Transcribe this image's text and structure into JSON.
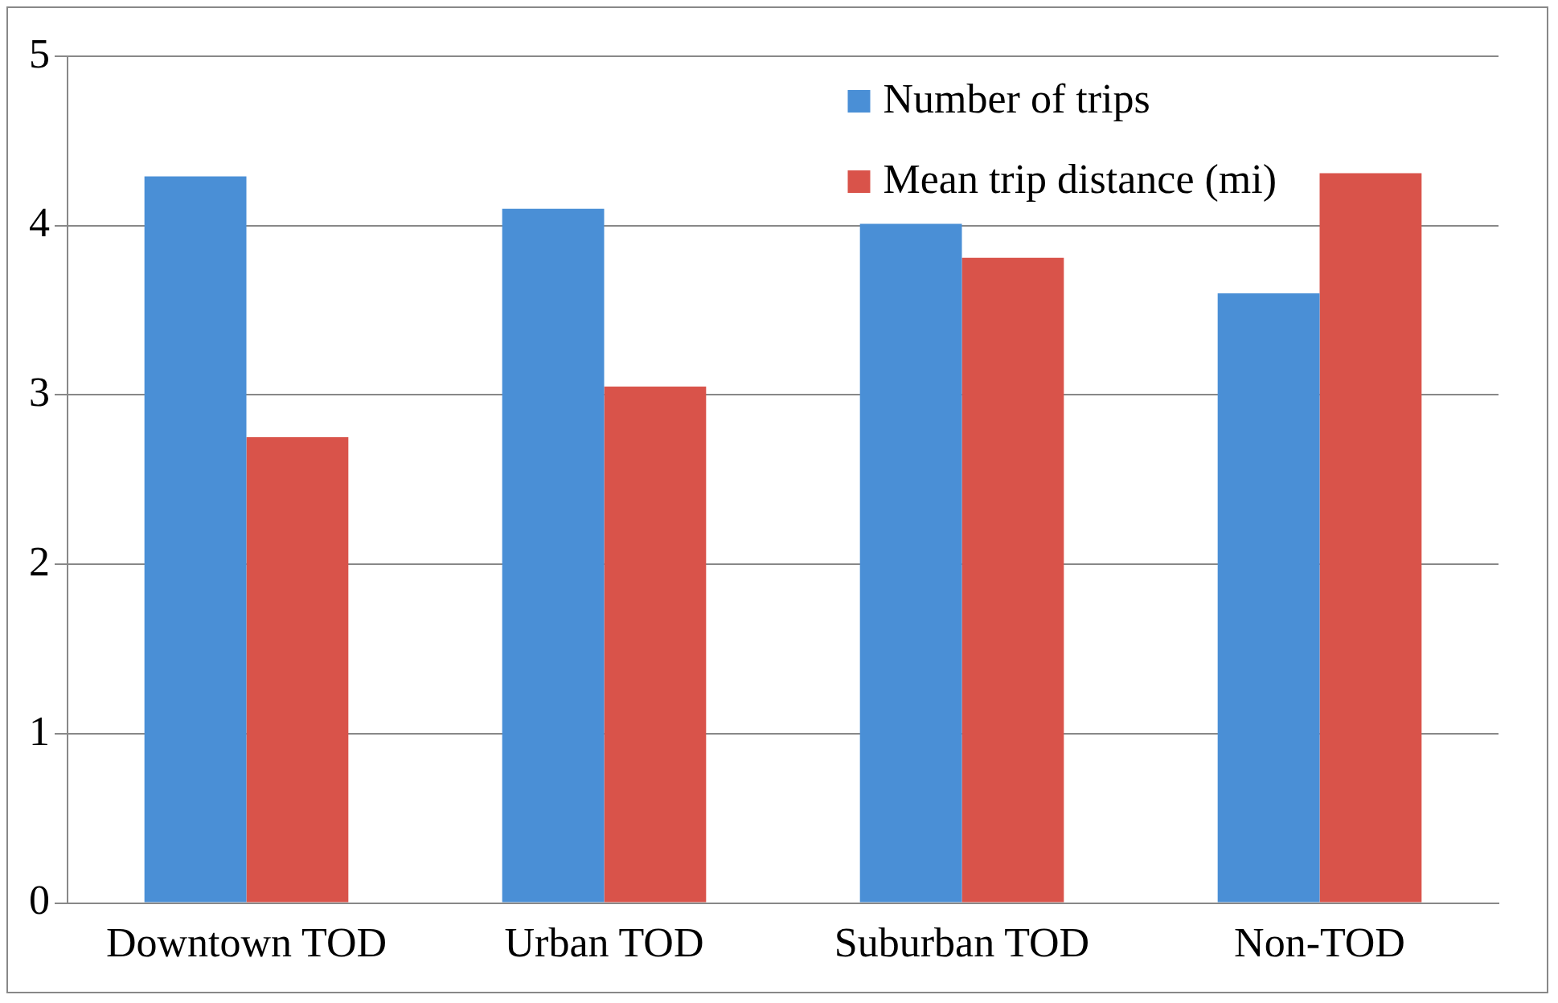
{
  "chart_data": {
    "type": "bar",
    "categories": [
      "Downtown TOD",
      "Urban TOD",
      "Suburban TOD",
      "Non-TOD"
    ],
    "series": [
      {
        "name": "Number of trips",
        "color": "#4a8fd6",
        "values": [
          4.29,
          4.1,
          4.01,
          3.6
        ]
      },
      {
        "name": "Mean trip distance (mi)",
        "color": "#d9534a",
        "values": [
          2.75,
          3.05,
          3.81,
          4.31
        ]
      }
    ],
    "ylim": [
      0,
      5
    ],
    "yticks": [
      0,
      1,
      2,
      3,
      4,
      5
    ],
    "grid": "y",
    "legend": "top right"
  }
}
